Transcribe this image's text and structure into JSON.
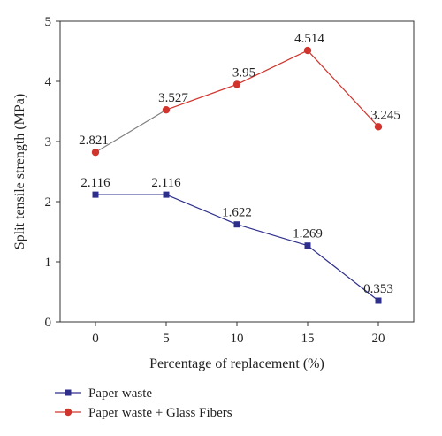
{
  "chart_data": {
    "type": "line",
    "title": "",
    "xlabel": "Percentage of replacement (%)",
    "ylabel": "Split tensile strength (MPa)",
    "x": [
      0,
      5,
      10,
      15,
      20
    ],
    "x_ticks": [
      "0",
      "5",
      "10",
      "15",
      "20"
    ],
    "y_ticks": [
      "0",
      "1",
      "2",
      "3",
      "4",
      "5"
    ],
    "xlim": [
      -2.5,
      22.5
    ],
    "ylim": [
      0,
      5
    ],
    "grid": false,
    "legend_position": "bottom-left",
    "series": [
      {
        "name": "Paper waste",
        "values": [
          2.116,
          2.116,
          1.622,
          1.269,
          0.353
        ],
        "labels": [
          "2.116",
          "2.116",
          "1.622",
          "1.269",
          "0.353"
        ],
        "color": "#2e2f8c",
        "marker": "square"
      },
      {
        "name": "Paper waste + Glass Fibers",
        "values": [
          2.821,
          3.527,
          3.95,
          4.514,
          3.245
        ],
        "labels": [
          "2.821",
          "3.527",
          "3.95",
          "4.514",
          "3.245"
        ],
        "color": "#d0342c",
        "marker": "circle",
        "first_segment_color": "#808080"
      }
    ]
  }
}
